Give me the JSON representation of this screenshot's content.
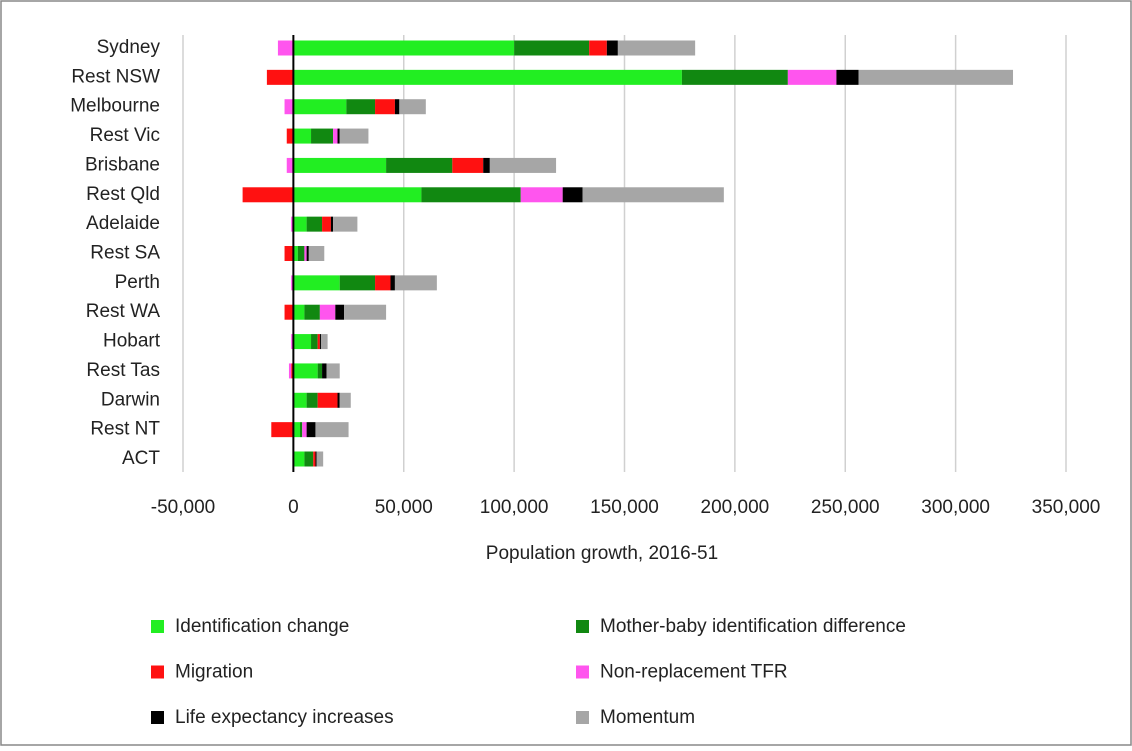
{
  "chart_data": {
    "type": "stacked-barh",
    "xlabel": "Population growth, 2016-51",
    "categories": [
      "Sydney",
      "Rest NSW",
      "Melbourne",
      "Rest Vic",
      "Brisbane",
      "Rest Qld",
      "Adelaide",
      "Rest SA",
      "Perth",
      "Rest WA",
      "Hobart",
      "Rest Tas",
      "Darwin",
      "Rest NT",
      "ACT"
    ],
    "series": [
      {
        "name": "Identification change",
        "color": "#22ee22",
        "values": [
          100000,
          176000,
          24000,
          8000,
          42000,
          58000,
          6000,
          2000,
          21000,
          5000,
          8000,
          11000,
          6000,
          3000,
          5000
        ]
      },
      {
        "name": "Mother-baby identification difference",
        "color": "#118811",
        "values": [
          34000,
          48000,
          13000,
          10000,
          30000,
          45000,
          7000,
          3000,
          16000,
          7000,
          3000,
          2000,
          5000,
          1000,
          4000
        ]
      },
      {
        "name": "Migration",
        "color": "#ff1111",
        "values": [
          8000,
          -12000,
          9000,
          -3000,
          14000,
          -23000,
          4000,
          -4000,
          7000,
          -4000,
          1000,
          -1000,
          9000,
          -10000,
          1000
        ]
      },
      {
        "name": "Non-replacement TFR",
        "color": "#ff55ee",
        "values": [
          -7000,
          22000,
          -4000,
          2000,
          -3000,
          19000,
          -1000,
          1000,
          -1000,
          7000,
          -1000,
          -1000,
          0,
          2000,
          0
        ]
      },
      {
        "name": "Life expectancy increases",
        "color": "#000000",
        "values": [
          5000,
          10000,
          2000,
          1000,
          3000,
          9000,
          1000,
          1000,
          2000,
          4000,
          500,
          2000,
          1000,
          4000,
          500
        ]
      },
      {
        "name": "Momentum",
        "color": "#a6a6a6",
        "values": [
          35000,
          70000,
          12000,
          13000,
          30000,
          64000,
          11000,
          7000,
          19000,
          19000,
          3000,
          6000,
          5000,
          15000,
          3000
        ]
      }
    ],
    "xlim": [
      -50000,
      350000
    ],
    "xticks": [
      {
        "value": -50000,
        "label": "-50,000"
      },
      0,
      {
        "value": 50000,
        "label": "50,000"
      },
      {
        "value": 100000,
        "label": "100,000"
      },
      {
        "value": 150000,
        "label": "150,000"
      },
      {
        "value": 200000,
        "label": "200,000"
      },
      {
        "value": 250000,
        "label": "250,000"
      },
      {
        "value": 300000,
        "label": "300,000"
      },
      {
        "value": 350000,
        "label": "350,000"
      }
    ],
    "grid": true
  }
}
